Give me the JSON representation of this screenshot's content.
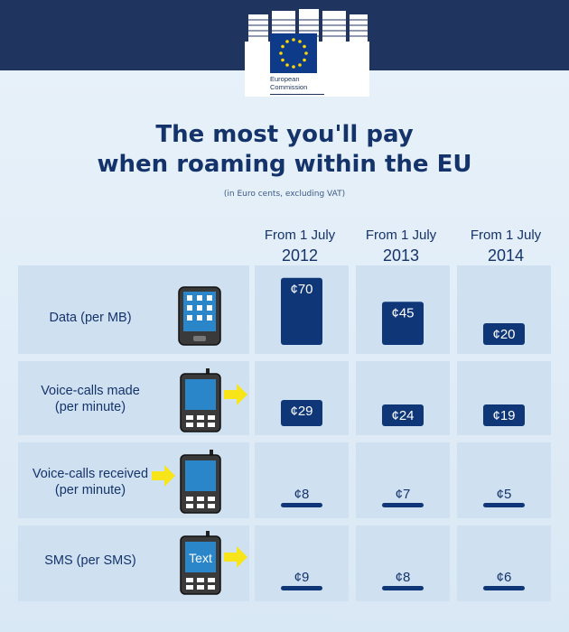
{
  "header": {
    "logo_line1": "European",
    "logo_line2": "Commission"
  },
  "title_line1": "The most you'll pay",
  "title_line2": "when roaming within the EU",
  "subtitle": "(in Euro cents, excluding VAT)",
  "columns": [
    {
      "line1": "From 1 July",
      "line2": "2012"
    },
    {
      "line1": "From 1 July",
      "line2": "2013"
    },
    {
      "line1": "From 1 July",
      "line2": "2014"
    }
  ],
  "rows": [
    {
      "line1": "Data (per MB)",
      "line2": "",
      "icon": "smartphone-icon"
    },
    {
      "line1": "Voice-calls made",
      "line2": "(per minute)",
      "icon": "mobile-phone-outgoing-icon"
    },
    {
      "line1": "Voice-calls received",
      "line2": "(per minute)",
      "icon": "mobile-phone-incoming-icon"
    },
    {
      "line1": "SMS (per SMS)",
      "line2": "",
      "icon": "text-message-phone-icon",
      "icon_text": "Text"
    }
  ],
  "colors": {
    "bar": "#0f3778",
    "header": "#1f3560",
    "text": "#15336b",
    "arrow": "#f7e51a"
  },
  "chart_data": {
    "type": "bar",
    "title": "The most you'll pay when roaming within the EU",
    "subtitle": "(in Euro cents, excluding VAT)",
    "unit": "Euro cents",
    "currency_symbol": "¢",
    "categories": [
      "From 1 July 2012",
      "From 1 July 2013",
      "From 1 July 2014"
    ],
    "series": [
      {
        "name": "Data (per MB)",
        "values": [
          70,
          45,
          20
        ]
      },
      {
        "name": "Voice-calls made (per minute)",
        "values": [
          29,
          24,
          19
        ]
      },
      {
        "name": "Voice-calls received (per minute)",
        "values": [
          8,
          7,
          5
        ]
      },
      {
        "name": "SMS (per SMS)",
        "values": [
          9,
          8,
          6
        ]
      }
    ]
  }
}
